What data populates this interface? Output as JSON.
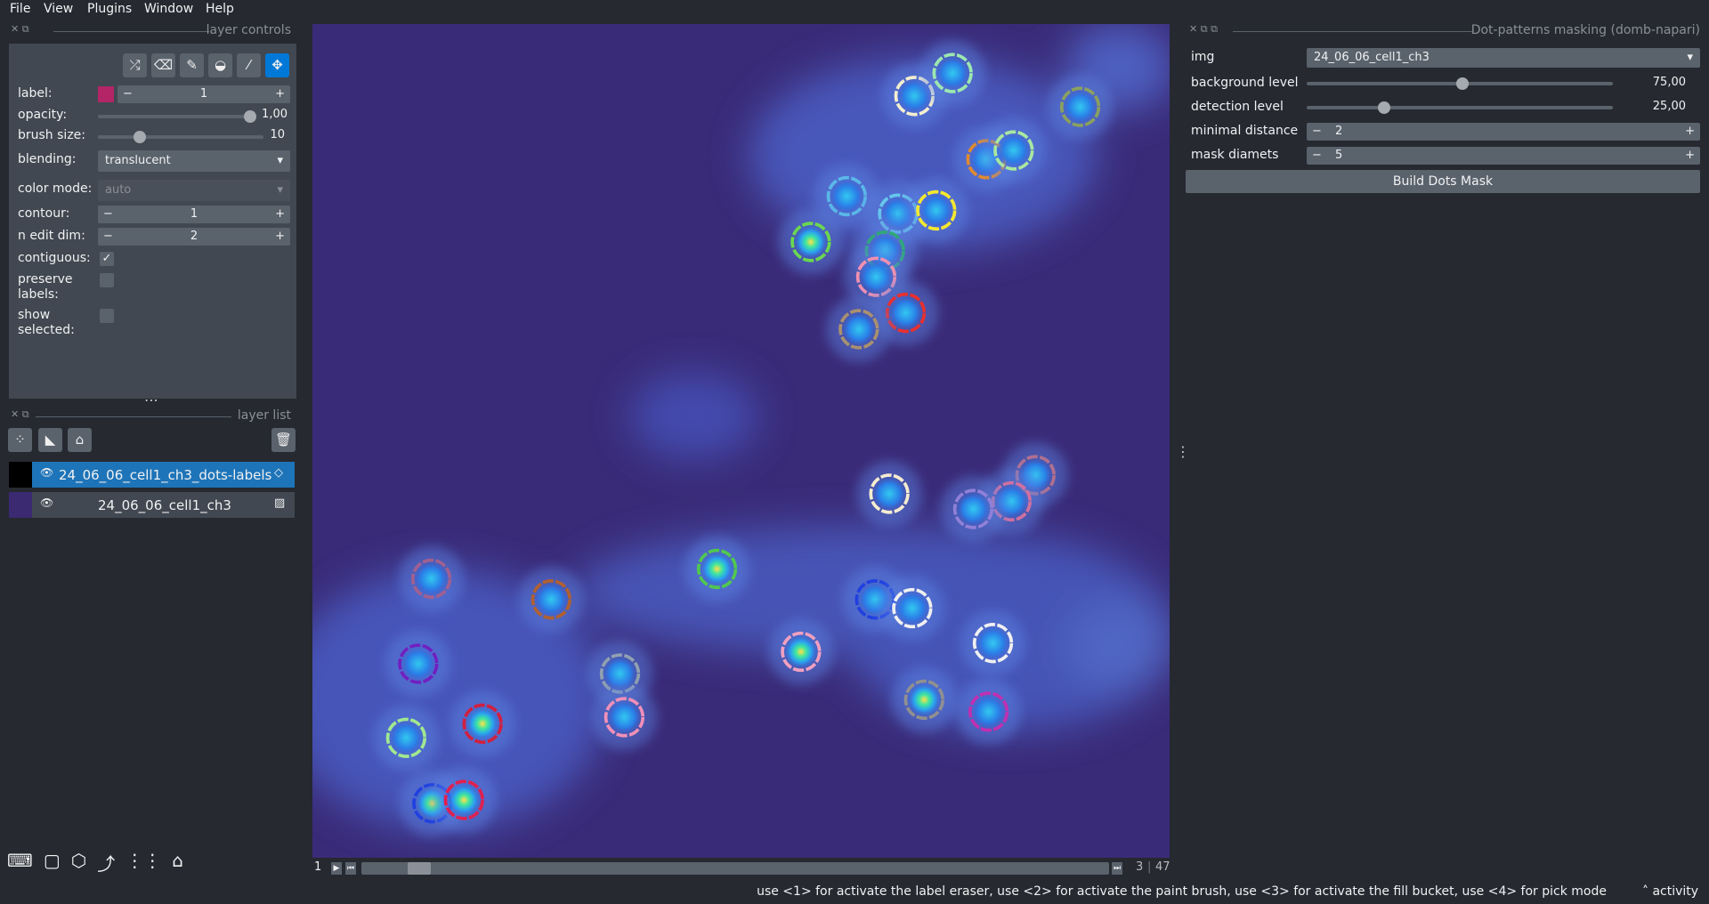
{
  "menu": [
    "File",
    "View",
    "Plugins",
    "Window",
    "Help"
  ],
  "layer_controls": {
    "title": "layer controls",
    "label": {
      "label": "label:",
      "value": "1"
    },
    "opacity": {
      "label": "opacity:",
      "value": "1,00"
    },
    "brush_size": {
      "label": "brush size:",
      "value": "10"
    },
    "blending": {
      "label": "blending:",
      "value": "translucent"
    },
    "color_mode": {
      "label": "color mode:",
      "value": "auto"
    },
    "contour": {
      "label": "contour:",
      "value": "1"
    },
    "n_edit_dim": {
      "label": "n edit dim:",
      "value": "2"
    },
    "contiguous": {
      "label": "contiguous:"
    },
    "preserve_labels": {
      "label": "preserve labels:"
    },
    "show_selected": {
      "label": "show selected:"
    }
  },
  "layer_list": {
    "title": "layer list",
    "layers": [
      "24_06_06_cell1_ch3_dots-labels",
      "24_06_06_cell1_ch3"
    ]
  },
  "dims": {
    "current": "1",
    "position": "3",
    "total": "47"
  },
  "widget": {
    "title": "Dot-patterns masking (domb-napari)",
    "img": {
      "label": "img",
      "value": "24_06_06_cell1_ch3"
    },
    "background_level": {
      "label": "background level",
      "value": "75,00"
    },
    "detection_level": {
      "label": "detection level",
      "value": "25,00"
    },
    "minimal_distance": {
      "label": "minimal distance",
      "value": "2"
    },
    "mask_diameter": {
      "label": "mask diamets",
      "value": "5"
    },
    "button": "Build Dots Mask"
  },
  "status": {
    "message": "use <1> for activate the label eraser, use <2> for activate the paint brush, use <3> for activate the fill bucket, use <4> for pick mode",
    "activity": "activity"
  }
}
